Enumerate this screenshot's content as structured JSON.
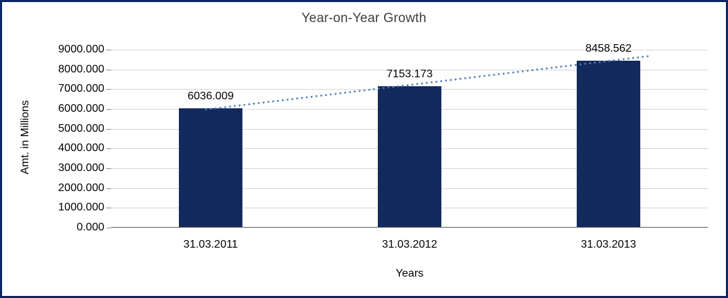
{
  "chart_data": {
    "type": "bar",
    "title": "Year-on-Year Growth",
    "xlabel": "Years",
    "ylabel": "Amt. in Millions",
    "categories": [
      "31.03.2011",
      "31.03.2012",
      "31.03.2013"
    ],
    "values": [
      6036.009,
      7153.173,
      8458.562
    ],
    "data_labels": [
      "6036.009",
      "7153.173",
      "8458.562"
    ],
    "ylim": [
      0,
      9000
    ],
    "ytick_step": 1000,
    "ytick_labels": [
      "0.000",
      "1000.000",
      "2000.000",
      "3000.000",
      "4000.000",
      "5000.000",
      "6000.000",
      "7000.000",
      "8000.000",
      "9000.000"
    ],
    "grid": true,
    "legend": "none",
    "trendline": "linear-dotted",
    "colors": {
      "bar": "#132a5c",
      "frame_border": "#0d2763",
      "trendline": "#4a7ebb",
      "gridline": "#d6d6d6",
      "axis_line": "#595959",
      "title_text": "#3f3f3f",
      "label_text": "#000000"
    }
  }
}
